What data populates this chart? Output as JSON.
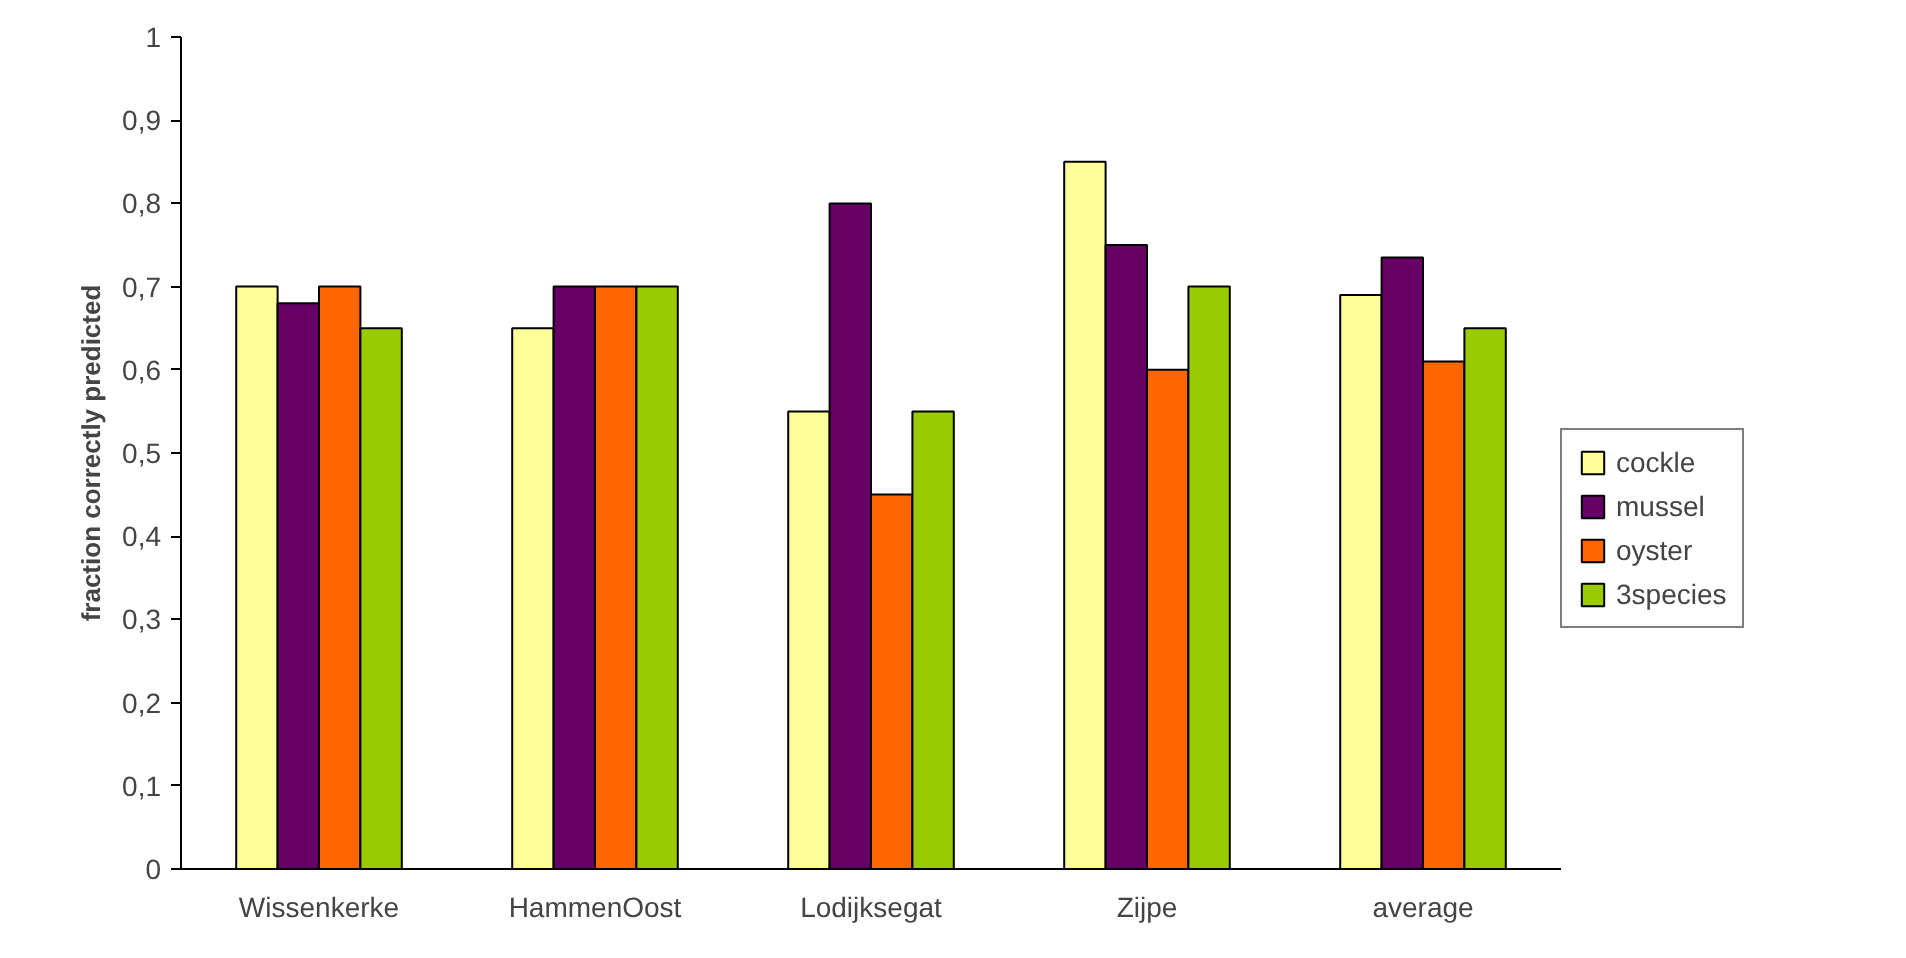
{
  "chart_data": {
    "type": "bar",
    "ylabel": "fraction correctly predicted",
    "categories": [
      "Wissenkerke",
      "HammenOost",
      "Lodijksegat",
      "Zijpe",
      "average"
    ],
    "series": [
      {
        "name": "cockle",
        "color": "#ffff99",
        "values": [
          0.7,
          0.65,
          0.55,
          0.85,
          0.69
        ]
      },
      {
        "name": "mussel",
        "color": "#660066",
        "values": [
          0.68,
          0.7,
          0.8,
          0.75,
          0.735
        ]
      },
      {
        "name": "oyster",
        "color": "#ff6600",
        "values": [
          0.7,
          0.7,
          0.45,
          0.6,
          0.61
        ]
      },
      {
        "name": "3species",
        "color": "#99cc00",
        "values": [
          0.65,
          0.7,
          0.55,
          0.7,
          0.65
        ]
      }
    ],
    "ylim": [
      0,
      1
    ],
    "yticks": [
      0,
      {
        "value": 0.1,
        "label": "0,1"
      },
      {
        "value": 0.2,
        "label": "0,2"
      },
      {
        "value": 0.3,
        "label": "0,3"
      },
      {
        "value": 0.4,
        "label": "0,4"
      },
      {
        "value": 0.5,
        "label": "0,5"
      },
      {
        "value": 0.6,
        "label": "0,6"
      },
      {
        "value": 0.7,
        "label": "0,7"
      },
      {
        "value": 0.8,
        "label": "0,8"
      },
      {
        "value": 0.9,
        "label": "0,9"
      },
      1
    ],
    "grid": false,
    "legend": "right"
  }
}
